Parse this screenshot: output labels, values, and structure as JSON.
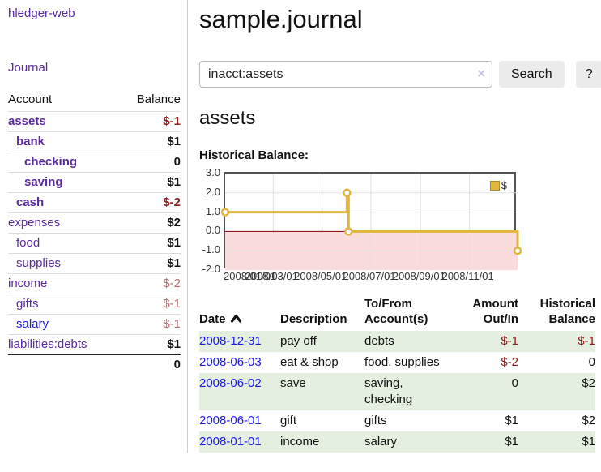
{
  "sidebar": {
    "app_title": "hledger-web",
    "journal_link": "Journal",
    "accounts": {
      "header_account": "Account",
      "header_balance": "Balance",
      "rows": [
        {
          "name": "assets",
          "balance": "$-1"
        },
        {
          "name": "bank",
          "balance": "$1"
        },
        {
          "name": "checking",
          "balance": "0"
        },
        {
          "name": "saving",
          "balance": "$1"
        },
        {
          "name": "cash",
          "balance": "$-2"
        },
        {
          "name": "expenses",
          "balance": "$2"
        },
        {
          "name": "food",
          "balance": "$1"
        },
        {
          "name": "supplies",
          "balance": "$1"
        },
        {
          "name": "income",
          "balance": "$-2"
        },
        {
          "name": "gifts",
          "balance": "$-1"
        },
        {
          "name": "salary",
          "balance": "$-1"
        },
        {
          "name": "liabilities:debts",
          "balance": "$1"
        }
      ],
      "total": "0"
    }
  },
  "main": {
    "title": "sample.journal",
    "search": {
      "value": "inacct:assets",
      "clear_icon": "×",
      "search_button": "Search",
      "help_button": "?"
    },
    "account_heading": "assets",
    "chart_heading": "Historical Balance:"
  },
  "chart_data": {
    "type": "line",
    "step": true,
    "title": "Historical Balance",
    "series": [
      {
        "name": "$",
        "points": [
          [
            "2008-01-01",
            1
          ],
          [
            "2008-06-01",
            2
          ],
          [
            "2008-06-03",
            0
          ],
          [
            "2008-12-31",
            -1
          ]
        ]
      }
    ],
    "x_range": [
      "2008-01-01",
      "2008-12-31"
    ],
    "ylim": [
      -2,
      3
    ],
    "y_tick_labels": [
      "3.0",
      "2.0",
      "1.0",
      "0.0",
      "-1.0",
      "-2.0"
    ],
    "y_tick_values": [
      3,
      2,
      1,
      0,
      -1,
      -2
    ],
    "x_tick_labels": [
      "2008/01/01",
      "2008/03/01",
      "2008/05/01",
      "2008/07/01",
      "2008/09/01",
      "2008/11/01"
    ],
    "x_tick_dates": [
      "2008-01-01",
      "2008-03-01",
      "2008-05-01",
      "2008-07-01",
      "2008-09-01",
      "2008-11-01"
    ],
    "legend": {
      "label": "$",
      "position": "top-right"
    },
    "grid": true,
    "negative_region_shaded": true,
    "colors": {
      "line": "#e2b63c",
      "marker_fill": "#ffffff",
      "negative_fill": "#fbdcdc",
      "zero_line": "#7f0000",
      "grid": "#e2e2e2",
      "border": "#545454"
    }
  },
  "register_table": {
    "headers": {
      "date": "Date",
      "description": "Description",
      "account": "To/From Account(s)",
      "amount": "Amount Out/In",
      "balance": "Historical Balance"
    },
    "rows": [
      {
        "date": "2008-12-31",
        "description": "pay off",
        "account": "debts",
        "amount": "$-1",
        "balance": "$-1"
      },
      {
        "date": "2008-06-03",
        "description": "eat & shop",
        "account": "food, supplies",
        "amount": "$-2",
        "balance": "0"
      },
      {
        "date": "2008-06-02",
        "description": "save",
        "account": "saving, checking",
        "amount": "0",
        "balance": "$2"
      },
      {
        "date": "2008-06-01",
        "description": "gift",
        "account": "gifts",
        "amount": "$1",
        "balance": "$2"
      },
      {
        "date": "2008-01-01",
        "description": "income",
        "account": "salary",
        "amount": "$1",
        "balance": "$1"
      }
    ]
  }
}
